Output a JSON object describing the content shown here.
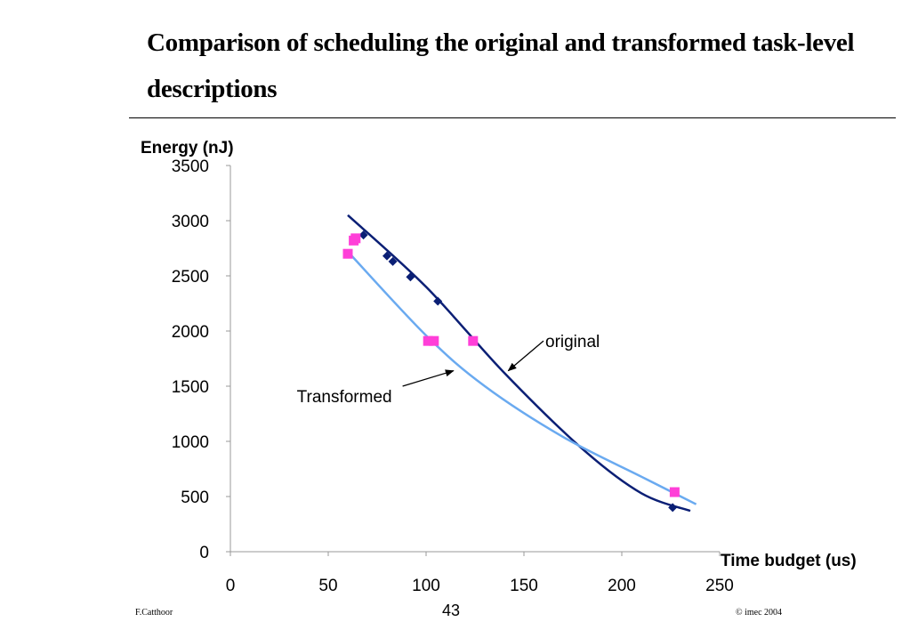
{
  "slide": {
    "title": "Comparison of scheduling the original and transformed task-level descriptions",
    "footer_author": "F.Catthoor",
    "footer_page": "43",
    "footer_copyright": "© imec 2004"
  },
  "chart_data": {
    "type": "scatter",
    "ylabel": "Energy (nJ)",
    "xlabel": "Time budget (us)",
    "xlim": [
      0,
      250
    ],
    "ylim": [
      0,
      3500
    ],
    "xticks": [
      0,
      50,
      100,
      150,
      200,
      250
    ],
    "yticks": [
      0,
      500,
      1000,
      1500,
      2000,
      2500,
      3000,
      3500
    ],
    "grid": false,
    "legend": "none",
    "series": [
      {
        "name": "original",
        "marker": "diamond",
        "color": "#0b1f75",
        "line_color": "#0b1f75",
        "points": [
          {
            "x": 68,
            "y": 2870
          },
          {
            "x": 80,
            "y": 2680
          },
          {
            "x": 83,
            "y": 2630
          },
          {
            "x": 92,
            "y": 2490
          },
          {
            "x": 106,
            "y": 2270
          },
          {
            "x": 226,
            "y": 400
          }
        ],
        "trend": [
          {
            "x": 60,
            "y": 3050
          },
          {
            "x": 100,
            "y": 2400
          },
          {
            "x": 140,
            "y": 1620
          },
          {
            "x": 180,
            "y": 930
          },
          {
            "x": 210,
            "y": 530
          },
          {
            "x": 235,
            "y": 370
          }
        ]
      },
      {
        "name": "Transformed",
        "marker": "square",
        "color": "#ff3fd8",
        "line_color": "#6aaaf0",
        "points": [
          {
            "x": 60,
            "y": 2700
          },
          {
            "x": 63,
            "y": 2820
          },
          {
            "x": 64,
            "y": 2840
          },
          {
            "x": 101,
            "y": 1910
          },
          {
            "x": 104,
            "y": 1910
          },
          {
            "x": 124,
            "y": 1910
          },
          {
            "x": 227,
            "y": 540
          }
        ],
        "trend": [
          {
            "x": 60,
            "y": 2720
          },
          {
            "x": 100,
            "y": 1960
          },
          {
            "x": 130,
            "y": 1500
          },
          {
            "x": 170,
            "y": 1040
          },
          {
            "x": 210,
            "y": 680
          },
          {
            "x": 238,
            "y": 430
          }
        ]
      }
    ],
    "annotations": [
      {
        "label": "original",
        "arrow_from": {
          "x": 160,
          "y": 1910
        },
        "arrow_to": {
          "x": 142,
          "y": 1640
        },
        "anchor": "start"
      },
      {
        "label": "Transformed",
        "arrow_from": {
          "x": 88,
          "y": 1500
        },
        "arrow_to": {
          "x": 114,
          "y": 1640
        },
        "anchor": "end"
      }
    ]
  }
}
